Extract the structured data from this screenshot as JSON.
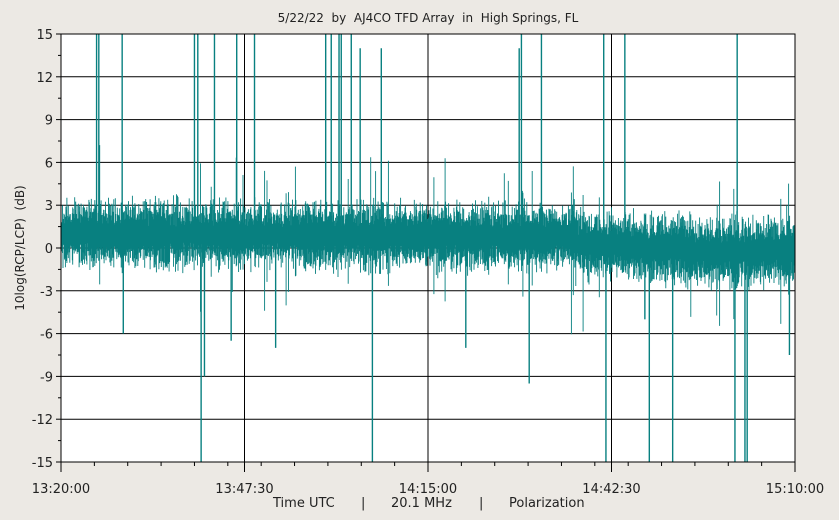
{
  "chart_data": {
    "type": "line",
    "title": "5/22/22  by  AJ4CO TFD Array  in  High Springs, FL",
    "ylabel": "10log(RCP/LCP)  (dB)",
    "ylim": [
      -15,
      15
    ],
    "y_ticks": [
      "15",
      "12",
      "9",
      "6",
      "3",
      "0",
      "-3",
      "-6",
      "-9",
      "-12",
      "-15"
    ],
    "x_ticks": [
      "13:20:00",
      "13:47:30",
      "14:15:00",
      "14:42:30",
      "15:10:00"
    ],
    "xlim": [
      "13:20:00",
      "15:10:00"
    ],
    "footer": {
      "xlabel": "Time UTC",
      "sep1": "|",
      "frequency": "20.1 MHz",
      "sep2": "|",
      "mode": "Polarization"
    },
    "grid": true,
    "line_color": "#088080",
    "spikes": [
      {
        "t": "13:25:20",
        "v": 15
      },
      {
        "t": "13:25:40",
        "v": 15
      },
      {
        "t": "13:29:10",
        "v": 15
      },
      {
        "t": "13:29:20",
        "v": -6
      },
      {
        "t": "13:40:00",
        "v": 15
      },
      {
        "t": "13:40:30",
        "v": 15
      },
      {
        "t": "13:41:00",
        "v": -15
      },
      {
        "t": "13:41:30",
        "v": -9
      },
      {
        "t": "13:43:00",
        "v": 15
      },
      {
        "t": "13:45:30",
        "v": -6.5
      },
      {
        "t": "13:46:20",
        "v": 15
      },
      {
        "t": "13:49:00",
        "v": 15
      },
      {
        "t": "13:52:10",
        "v": -7
      },
      {
        "t": "13:59:40",
        "v": 15
      },
      {
        "t": "14:00:30",
        "v": 15
      },
      {
        "t": "14:01:40",
        "v": 15
      },
      {
        "t": "14:02:00",
        "v": 15
      },
      {
        "t": "14:03:30",
        "v": 15
      },
      {
        "t": "14:04:50",
        "v": 14
      },
      {
        "t": "14:06:40",
        "v": -15
      },
      {
        "t": "14:08:00",
        "v": 14
      },
      {
        "t": "14:20:40",
        "v": -7
      },
      {
        "t": "14:28:40",
        "v": 14
      },
      {
        "t": "14:29:00",
        "v": 15
      },
      {
        "t": "14:30:10",
        "v": -9.5
      },
      {
        "t": "14:32:00",
        "v": 15
      },
      {
        "t": "14:41:20",
        "v": 15
      },
      {
        "t": "14:41:40",
        "v": -15
      },
      {
        "t": "14:44:30",
        "v": 15
      },
      {
        "t": "14:47:30",
        "v": -5
      },
      {
        "t": "14:48:10",
        "v": -15
      },
      {
        "t": "14:51:40",
        "v": -15
      },
      {
        "t": "15:01:00",
        "v": -15
      },
      {
        "t": "15:01:20",
        "v": 15
      },
      {
        "t": "15:02:30",
        "v": -15
      },
      {
        "t": "15:02:50",
        "v": -15
      },
      {
        "t": "15:09:10",
        "v": -7.5
      }
    ]
  }
}
